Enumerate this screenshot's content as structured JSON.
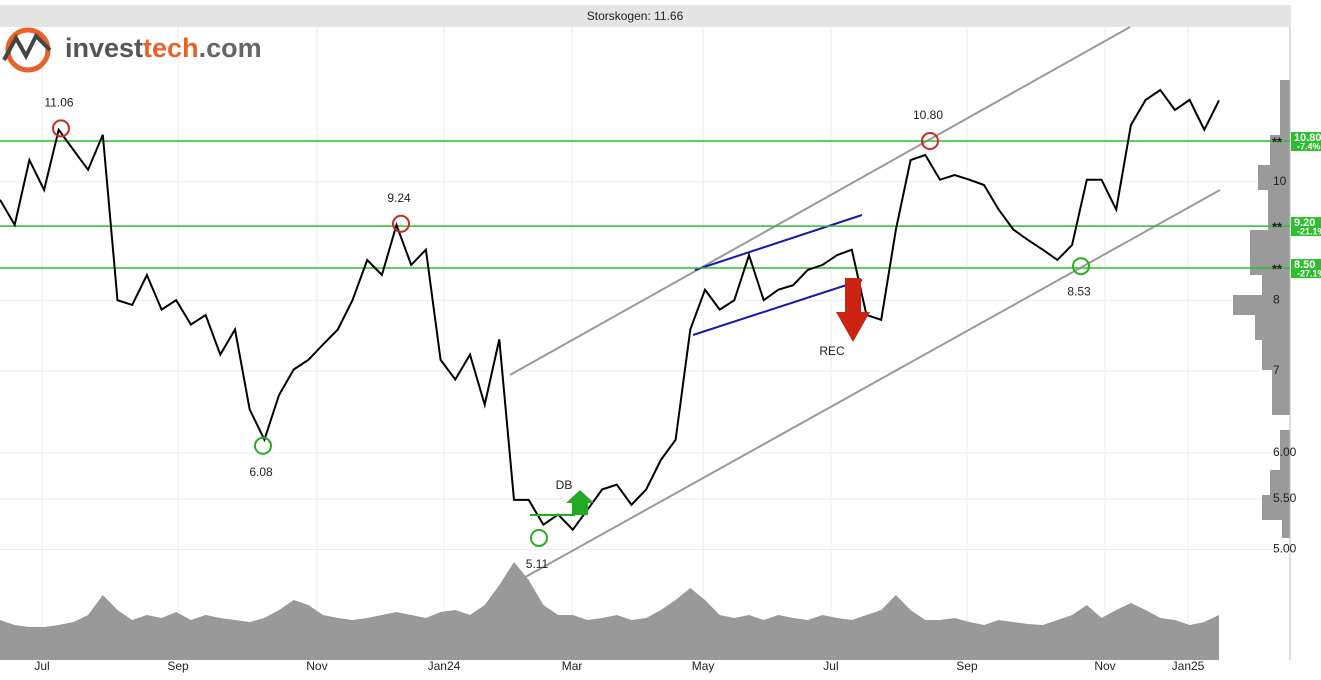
{
  "chart_data": {
    "type": "line",
    "title": "Storskogen: 11.66",
    "logo": {
      "parts": [
        "invest",
        "tech",
        ".com"
      ]
    },
    "log_scale": true,
    "grid": true,
    "color": "#000000",
    "values": [
      9.67,
      9.22,
      10.42,
      9.85,
      11.03,
      10.62,
      10.23,
      10.93,
      8.0,
      7.93,
      8.39,
      7.86,
      8.0,
      7.64,
      7.78,
      7.22,
      7.57,
      6.51,
      6.15,
      6.69,
      7.02,
      7.15,
      7.36,
      7.57,
      8.0,
      8.63,
      8.39,
      9.22,
      8.55,
      8.8,
      7.15,
      6.89,
      7.22,
      6.57,
      7.43,
      5.49,
      5.49,
      5.24,
      5.34,
      5.19,
      5.39,
      5.6,
      5.65,
      5.44,
      5.6,
      5.92,
      6.15,
      7.57,
      8.16,
      7.86,
      8.0,
      8.71,
      8.0,
      8.16,
      8.23,
      8.47,
      8.55,
      8.71,
      8.8,
      7.78,
      7.71,
      9.14,
      10.42,
      10.52,
      10.04,
      10.13,
      10.04,
      9.94,
      9.49,
      9.14,
      8.96,
      8.8,
      8.63,
      8.88,
      10.04,
      10.04,
      9.49,
      11.13,
      11.67,
      11.89,
      11.45,
      11.67,
      11.03,
      11.66
    ],
    "volume": {
      "color": "#999999",
      "lim": [
        0,
        100
      ],
      "values": [
        40,
        35,
        33,
        33,
        35,
        38,
        45,
        65,
        50,
        40,
        45,
        42,
        48,
        40,
        45,
        42,
        40,
        38,
        42,
        50,
        60,
        55,
        45,
        42,
        40,
        42,
        45,
        48,
        45,
        42,
        48,
        50,
        45,
        55,
        75,
        98,
        80,
        55,
        45,
        45,
        40,
        42,
        45,
        40,
        42,
        50,
        60,
        72,
        60,
        45,
        42,
        45,
        40,
        45,
        42,
        40,
        45,
        42,
        40,
        45,
        50,
        65,
        50,
        40,
        40,
        42,
        38,
        35,
        40,
        38,
        36,
        35,
        40,
        45,
        55,
        42,
        50,
        57,
        50,
        42,
        40,
        35,
        38,
        45
      ]
    },
    "xlim": [
      0,
      83
    ],
    "xticks": [
      {
        "value": 2.86,
        "label": "Jul"
      },
      {
        "value": 12.12,
        "label": "Sep"
      },
      {
        "value": 21.58,
        "label": "Nov"
      },
      {
        "value": 30.23,
        "label": "Jan24"
      },
      {
        "value": 38.95,
        "label": "Mar"
      },
      {
        "value": 47.87,
        "label": "May"
      },
      {
        "value": 56.58,
        "label": "Jul"
      },
      {
        "value": 65.84,
        "label": "Sep"
      },
      {
        "value": 75.24,
        "label": "Nov"
      },
      {
        "value": 80.89,
        "label": "Jan25"
      }
    ],
    "ylim": [
      4.06,
      13.39
    ],
    "yticks": [
      {
        "value": 5,
        "label": "5.00"
      },
      {
        "value": 5.5,
        "label": "5.50"
      },
      {
        "value": 6,
        "label": "6.00"
      },
      7,
      8,
      10
    ],
    "levels": [
      {
        "value": 10.8,
        "label": "10.80",
        "change": "-7.4%",
        "color": "#2ebd2e"
      },
      {
        "value": 9.2,
        "label": "9.20",
        "change": "-21.1%",
        "color": "#2ebd2e"
      },
      {
        "value": 8.5,
        "label": "8.50",
        "change": "-27.1%",
        "color": "#2ebd2e"
      }
    ],
    "extremes": [
      {
        "value": 11.06,
        "color": "#cc2a2a"
      },
      {
        "value": 9.24,
        "color": "#cc2a2a"
      },
      {
        "value": 6.08,
        "color": "#22b022"
      },
      {
        "value": 5.11,
        "color": "#22b022"
      },
      {
        "value": 10.8,
        "label": "10.80",
        "color": "#cc2a2a"
      },
      {
        "value": 8.53,
        "color": "#22b022"
      }
    ],
    "signals": [
      {
        "label": "DB",
        "color": "#22aa22"
      },
      {
        "label": "REC",
        "color": "#cc2211"
      }
    ]
  }
}
